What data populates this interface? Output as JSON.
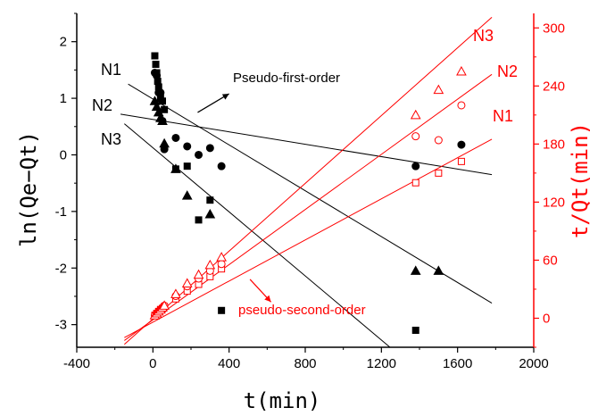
{
  "colors": {
    "black": "#000000",
    "red": "#ff0000"
  },
  "chart_data": {
    "type": "scatter",
    "xlabel": "t(min)",
    "ylabel_left": "ln(Qe−Qt)",
    "ylabel_right": "t/Qt(min)",
    "xlim": [
      -400,
      2000
    ],
    "ylim_left": [
      -3.4,
      2.5
    ],
    "ylim_right": [
      -30,
      315
    ],
    "xticks": [
      -400,
      0,
      400,
      800,
      1200,
      1600,
      2000
    ],
    "xtick_labels": [
      "-400",
      "0",
      "400",
      "800",
      "1200",
      "1600",
      "2000"
    ],
    "yticks_left": [
      -3,
      -2,
      -1,
      0,
      1,
      2
    ],
    "ytick_labels_left": [
      "-3",
      "-2",
      "-1",
      "0",
      "1",
      "2"
    ],
    "yticks_right": [
      0,
      60,
      120,
      180,
      240,
      300
    ],
    "ytick_labels_right": [
      "0",
      "60",
      "120",
      "180",
      "240",
      "300"
    ],
    "annotations": {
      "pfo": "Pseudo-first-order",
      "pso": "pseudo-second-order",
      "black_n1": "N1",
      "black_n2": "N2",
      "black_n3": "N3",
      "red_n1": "N1",
      "red_n2": "N2",
      "red_n3": "N3"
    },
    "series": [
      {
        "marker": "square",
        "filled": true,
        "axis": "left",
        "x": [
          10,
          15,
          20,
          25,
          30,
          40,
          50,
          60,
          120,
          180,
          240,
          300,
          360,
          1380
        ],
        "y": [
          1.75,
          1.6,
          1.45,
          1.3,
          1.2,
          1.0,
          0.95,
          0.8,
          -0.25,
          -0.2,
          -1.15,
          -0.8,
          -2.75,
          -3.1
        ]
      },
      {
        "marker": "circle",
        "filled": true,
        "axis": "left",
        "x": [
          10,
          20,
          30,
          40,
          50,
          60,
          120,
          180,
          240,
          300,
          360,
          1380,
          1620
        ],
        "y": [
          1.45,
          1.4,
          1.1,
          1.1,
          0.6,
          0.1,
          0.3,
          0.15,
          0.0,
          0.12,
          -0.2,
          -0.2,
          0.18
        ]
      },
      {
        "marker": "triangle",
        "filled": true,
        "axis": "left",
        "x": [
          10,
          20,
          30,
          40,
          50,
          60,
          120,
          180,
          300,
          1380,
          1500
        ],
        "y": [
          0.95,
          0.85,
          0.75,
          0.65,
          0.6,
          0.2,
          -0.25,
          -0.72,
          -1.05,
          -2.05,
          -2.05
        ]
      },
      {
        "marker": "square",
        "filled": false,
        "axis": "right",
        "x": [
          10,
          20,
          30,
          40,
          50,
          60,
          120,
          180,
          240,
          300,
          360,
          1380,
          1500,
          1620
        ],
        "y": [
          3,
          5,
          7,
          9,
          10,
          12,
          20,
          28,
          35,
          43,
          51,
          140,
          150,
          162
        ]
      },
      {
        "marker": "circle",
        "filled": false,
        "axis": "right",
        "x": [
          10,
          20,
          30,
          40,
          50,
          60,
          120,
          180,
          240,
          300,
          360,
          1380,
          1500,
          1620
        ],
        "y": [
          3,
          5,
          7,
          9,
          11,
          13,
          23,
          33,
          41,
          49,
          56,
          188,
          184,
          220
        ]
      },
      {
        "marker": "triangle",
        "filled": false,
        "axis": "right",
        "x": [
          10,
          20,
          30,
          40,
          50,
          60,
          120,
          180,
          240,
          300,
          360,
          1380,
          1500,
          1620
        ],
        "y": [
          3,
          5,
          7,
          9,
          11,
          13,
          25,
          36,
          45,
          55,
          63,
          210,
          236,
          255
        ]
      }
    ],
    "fit_lines": [
      {
        "axis": "left",
        "x": [
          -170,
          1780
        ],
        "y": [
          0.72,
          -0.35
        ]
      },
      {
        "axis": "left",
        "x": [
          -130,
          1780
        ],
        "y": [
          1.25,
          -2.62
        ]
      },
      {
        "axis": "left",
        "x": [
          -150,
          1245
        ],
        "y": [
          0.55,
          -3.4
        ]
      },
      {
        "axis": "right",
        "x": [
          -150,
          1780
        ],
        "y": [
          -20,
          185
        ]
      },
      {
        "axis": "right",
        "x": [
          -150,
          1780
        ],
        "y": [
          -23,
          252
        ]
      },
      {
        "axis": "right",
        "x": [
          -150,
          1780
        ],
        "y": [
          -27,
          311
        ]
      }
    ],
    "arrows": [
      {
        "axis": "left",
        "from": [
          235,
          0.75
        ],
        "to": [
          400,
          1.08
        ],
        "color": "black"
      },
      {
        "axis": "left",
        "from": [
          510,
          -2.2
        ],
        "to": [
          620,
          -2.6
        ],
        "color": "red"
      }
    ]
  }
}
